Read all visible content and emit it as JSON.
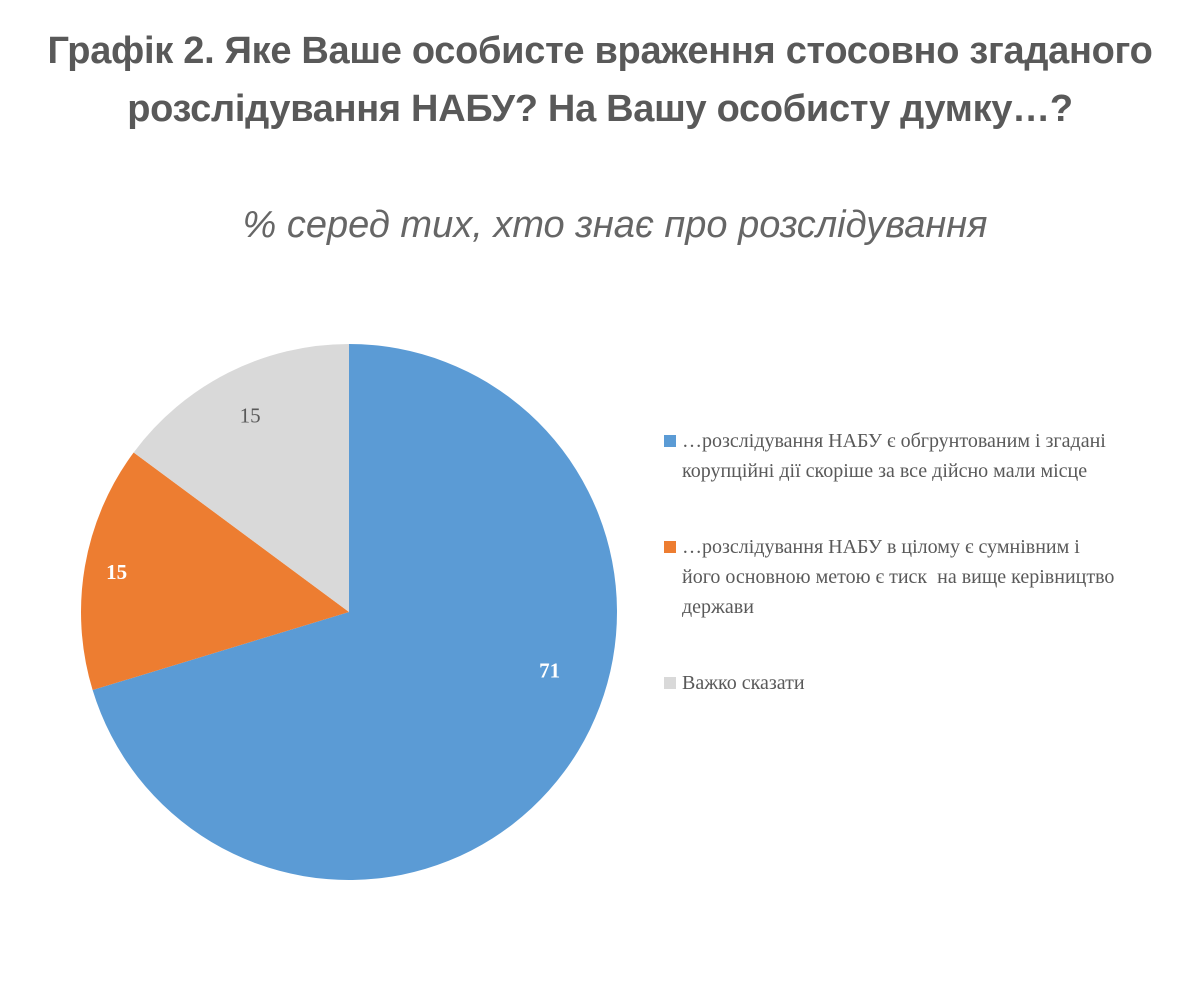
{
  "header": {
    "title": "Графік 2. Яке Ваше особисте враження стосовно згаданого розслідування НАБУ? На Вашу особисту думку…?",
    "subtitle": "% серед тих, хто знає про розслідування"
  },
  "legend": {
    "items": [
      {
        "label": "…розслідування НАБУ є обгрунтованим і згадані корупційні дії скоріше за все дійсно мали місце",
        "color": "#5b9bd5"
      },
      {
        "label": "…розслідування НАБУ в цілому є сумнівним і його основною метою є тиск  на вище керівництво держави",
        "color": "#ed7d31"
      },
      {
        "label": "Важко сказати",
        "color": "#d9d9d9"
      }
    ]
  },
  "chart_data": {
    "type": "pie",
    "title": "Графік 2. Яке Ваше особисте враження стосовно згаданого розслідування НАБУ? На Вашу особисту думку…?",
    "subtitle": "% серед тих, хто знає про розслідування",
    "categories": [
      "…розслідування НАБУ є обгрунтованим і згадані корупційні дії скоріше за все дійсно мали місце",
      "…розслідування НАБУ в цілому є сумнівним і його основною метою є тиск  на вище керівництво держави",
      "Важко сказати"
    ],
    "values": [
      71,
      15,
      15
    ],
    "colors": [
      "#5b9bd5",
      "#ed7d31",
      "#d9d9d9"
    ],
    "data_labels": [
      "71",
      "15",
      "15"
    ],
    "label_colors": [
      "#ffffff",
      "#ffffff",
      "#595959"
    ],
    "start_angle_deg": 0,
    "direction": "clockwise",
    "legend_position": "right",
    "unit": "%"
  }
}
